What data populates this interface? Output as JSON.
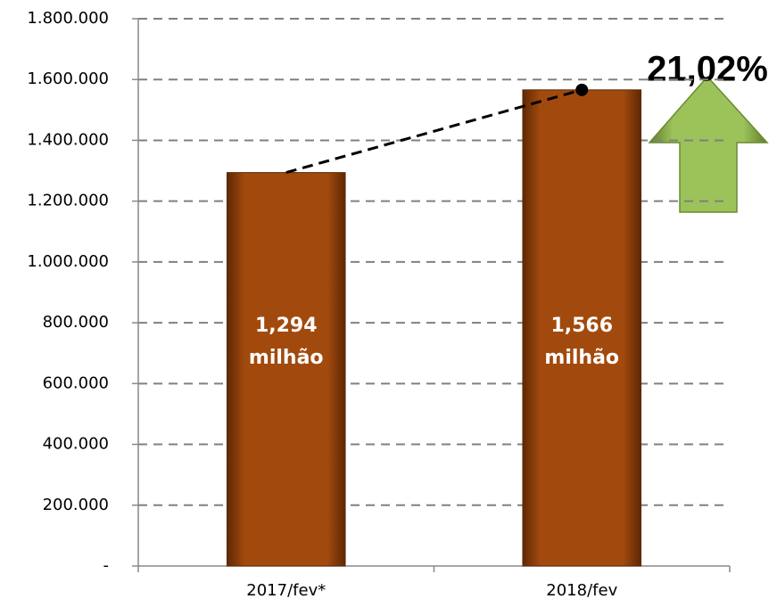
{
  "chart_data": {
    "type": "bar",
    "categories": [
      "2017/fev*",
      "2018/fev"
    ],
    "values": [
      1294000,
      1566000
    ],
    "value_labels": [
      "1,294 milhão",
      "1,566 milhão"
    ],
    "color": "#a24a0d",
    "ylim": [
      0,
      1800000
    ],
    "yticks": [
      {
        "value": 0,
        "label": "-"
      },
      {
        "value": 200000,
        "label": "200.000"
      },
      {
        "value": 400000,
        "label": "400.000"
      },
      {
        "value": 600000,
        "label": "600.000"
      },
      {
        "value": 800000,
        "label": "800.000"
      },
      {
        "value": 1000000,
        "label": "1.000.000"
      },
      {
        "value": 1200000,
        "label": "1.200.000"
      },
      {
        "value": 1400000,
        "label": "1.400.000"
      },
      {
        "value": 1600000,
        "label": "1.600.000"
      },
      {
        "value": 1800000,
        "label": "1.800.000"
      }
    ],
    "grid": true,
    "annotation": "21,02%"
  }
}
